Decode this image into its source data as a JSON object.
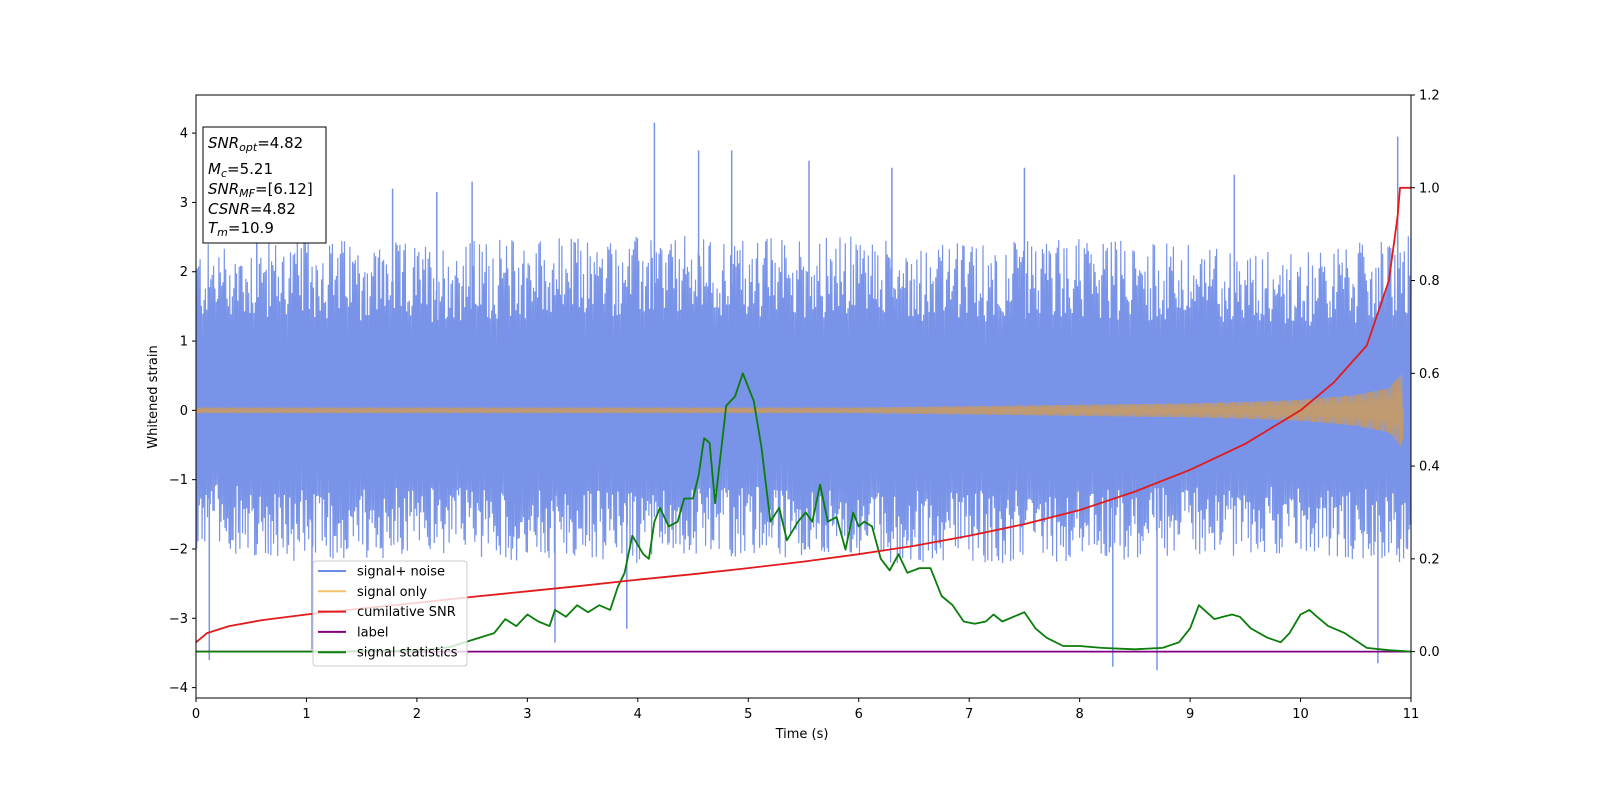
{
  "chart_data": {
    "type": "line",
    "xlabel": "Time (s)",
    "ylabel": "Whitened strain",
    "xlim": [
      0,
      11
    ],
    "ylim_left": [
      -4.15,
      4.55
    ],
    "ylim_right": [
      -0.1,
      1.2
    ],
    "x_ticks": [
      0,
      1,
      2,
      3,
      4,
      5,
      6,
      7,
      8,
      9,
      10,
      11
    ],
    "y_left_ticks": [
      -4,
      -3,
      -2,
      -1,
      0,
      1,
      2,
      3,
      4
    ],
    "y_right_ticks": [
      "0.0",
      "0.2",
      "0.4",
      "0.6",
      "0.8",
      "1.0",
      "1.2"
    ],
    "info_box": {
      "snr_opt": {
        "base": "SNR",
        "sub": "opt",
        "value": "=4.82"
      },
      "mc": {
        "base": "M",
        "sub": "c",
        "value": "=5.21"
      },
      "snr_mf": {
        "base": "SNR",
        "sub": "MF",
        "value": "=[6.12]"
      },
      "csnr": {
        "base": "CSNR",
        "sub": "",
        "value": "=4.82"
      },
      "tm": {
        "base": "T",
        "sub": "m",
        "value": "=10.9"
      }
    },
    "legend": {
      "position": "lower-left",
      "entries": [
        {
          "label": "signal+ noise",
          "color": "#6d8be6"
        },
        {
          "label": "signal only",
          "color": "#f5c16c"
        },
        {
          "label": "cumilative SNR",
          "color": "#e31a1c"
        },
        {
          "label": "label",
          "color": "#800080"
        },
        {
          "label": "signal statistics",
          "color": "#0a7d0a"
        }
      ]
    },
    "series": [
      {
        "name": "signal+ noise",
        "axis": "left",
        "style": "noise-band",
        "color": "#7893e8",
        "band_upper": [
          [
            0,
            2.3
          ],
          [
            1,
            2.4
          ],
          [
            2,
            2.3
          ],
          [
            3,
            2.4
          ],
          [
            4,
            2.4
          ],
          [
            5,
            2.4
          ],
          [
            6,
            2.4
          ],
          [
            7,
            2.3
          ],
          [
            8,
            2.4
          ],
          [
            9,
            2.3
          ],
          [
            10,
            2.2
          ],
          [
            11,
            2.4
          ]
        ],
        "band_lower": [
          [
            0,
            -1.9
          ],
          [
            1,
            -2.1
          ],
          [
            2,
            -2.0
          ],
          [
            3,
            -2.1
          ],
          [
            4,
            -2.1
          ],
          [
            5,
            -2.0
          ],
          [
            6,
            -2.1
          ],
          [
            7,
            -2.1
          ],
          [
            8,
            -2.1
          ],
          [
            9,
            -2.0
          ],
          [
            10,
            -2.0
          ],
          [
            11,
            -2.1
          ]
        ],
        "spikes": [
          [
            0.12,
            -3.6
          ],
          [
            0.55,
            3.2
          ],
          [
            1.05,
            -3.45
          ],
          [
            1.78,
            3.2
          ],
          [
            2.18,
            3.15
          ],
          [
            2.5,
            3.3
          ],
          [
            3.25,
            -3.35
          ],
          [
            3.9,
            -3.15
          ],
          [
            4.15,
            4.15
          ],
          [
            4.55,
            3.75
          ],
          [
            4.85,
            3.75
          ],
          [
            5.55,
            3.6
          ],
          [
            6.3,
            3.5
          ],
          [
            7.5,
            3.5
          ],
          [
            8.3,
            -3.7
          ],
          [
            8.7,
            -3.75
          ],
          [
            9.4,
            3.4
          ],
          [
            10.7,
            -3.65
          ],
          [
            10.88,
            3.95
          ]
        ]
      },
      {
        "name": "signal only",
        "axis": "left",
        "color": "#c09a70",
        "envelope": [
          [
            0,
            0.04
          ],
          [
            6,
            0.04
          ],
          [
            7,
            0.06
          ],
          [
            8,
            0.08
          ],
          [
            9,
            0.1
          ],
          [
            9.5,
            0.12
          ],
          [
            10,
            0.15
          ],
          [
            10.5,
            0.22
          ],
          [
            10.8,
            0.32
          ],
          [
            10.9,
            0.5
          ],
          [
            10.92,
            0.55
          ],
          [
            10.93,
            0.02
          ]
        ]
      },
      {
        "name": "cumilative SNR",
        "axis": "right",
        "color": "#e31a1c",
        "points": [
          [
            0,
            0.02
          ],
          [
            0.1,
            0.04
          ],
          [
            0.3,
            0.055
          ],
          [
            0.6,
            0.068
          ],
          [
            1,
            0.08
          ],
          [
            1.5,
            0.093
          ],
          [
            2,
            0.105
          ],
          [
            2.5,
            0.118
          ],
          [
            3,
            0.13
          ],
          [
            3.5,
            0.142
          ],
          [
            4,
            0.155
          ],
          [
            4.5,
            0.167
          ],
          [
            5,
            0.18
          ],
          [
            5.5,
            0.194
          ],
          [
            6,
            0.21
          ],
          [
            6.5,
            0.228
          ],
          [
            7,
            0.25
          ],
          [
            7.5,
            0.275
          ],
          [
            8,
            0.305
          ],
          [
            8.5,
            0.345
          ],
          [
            9,
            0.392
          ],
          [
            9.5,
            0.448
          ],
          [
            10,
            0.52
          ],
          [
            10.3,
            0.58
          ],
          [
            10.6,
            0.66
          ],
          [
            10.8,
            0.8
          ],
          [
            10.88,
            0.94
          ],
          [
            10.9,
            1.0
          ],
          [
            11,
            1.0
          ]
        ]
      },
      {
        "name": "label",
        "axis": "right",
        "color": "#800080",
        "points": [
          [
            0,
            0
          ],
          [
            11,
            0
          ]
        ]
      },
      {
        "name": "signal statistics",
        "axis": "right",
        "color": "#0a7d0a",
        "points": [
          [
            0,
            0
          ],
          [
            1,
            0
          ],
          [
            2,
            0.002
          ],
          [
            2.3,
            0.01
          ],
          [
            2.5,
            0.025
          ],
          [
            2.7,
            0.04
          ],
          [
            2.8,
            0.07
          ],
          [
            2.9,
            0.055
          ],
          [
            3.0,
            0.08
          ],
          [
            3.1,
            0.065
          ],
          [
            3.2,
            0.055
          ],
          [
            3.25,
            0.09
          ],
          [
            3.35,
            0.075
          ],
          [
            3.45,
            0.1
          ],
          [
            3.55,
            0.085
          ],
          [
            3.65,
            0.1
          ],
          [
            3.75,
            0.09
          ],
          [
            3.82,
            0.14
          ],
          [
            3.88,
            0.17
          ],
          [
            3.95,
            0.25
          ],
          [
            4.05,
            0.21
          ],
          [
            4.1,
            0.2
          ],
          [
            4.15,
            0.28
          ],
          [
            4.2,
            0.31
          ],
          [
            4.28,
            0.27
          ],
          [
            4.36,
            0.28
          ],
          [
            4.42,
            0.33
          ],
          [
            4.5,
            0.33
          ],
          [
            4.55,
            0.38
          ],
          [
            4.6,
            0.46
          ],
          [
            4.65,
            0.45
          ],
          [
            4.7,
            0.32
          ],
          [
            4.8,
            0.53
          ],
          [
            4.88,
            0.55
          ],
          [
            4.95,
            0.6
          ],
          [
            5.05,
            0.54
          ],
          [
            5.12,
            0.44
          ],
          [
            5.2,
            0.28
          ],
          [
            5.28,
            0.31
          ],
          [
            5.35,
            0.24
          ],
          [
            5.45,
            0.28
          ],
          [
            5.52,
            0.3
          ],
          [
            5.58,
            0.28
          ],
          [
            5.65,
            0.36
          ],
          [
            5.72,
            0.28
          ],
          [
            5.8,
            0.29
          ],
          [
            5.88,
            0.22
          ],
          [
            5.95,
            0.3
          ],
          [
            6.0,
            0.27
          ],
          [
            6.05,
            0.28
          ],
          [
            6.12,
            0.27
          ],
          [
            6.2,
            0.2
          ],
          [
            6.28,
            0.175
          ],
          [
            6.36,
            0.21
          ],
          [
            6.44,
            0.17
          ],
          [
            6.55,
            0.18
          ],
          [
            6.65,
            0.18
          ],
          [
            6.75,
            0.12
          ],
          [
            6.85,
            0.1
          ],
          [
            6.95,
            0.065
          ],
          [
            7.05,
            0.06
          ],
          [
            7.15,
            0.065
          ],
          [
            7.22,
            0.08
          ],
          [
            7.3,
            0.065
          ],
          [
            7.4,
            0.075
          ],
          [
            7.5,
            0.085
          ],
          [
            7.6,
            0.05
          ],
          [
            7.7,
            0.03
          ],
          [
            7.85,
            0.012
          ],
          [
            8.0,
            0.012
          ],
          [
            8.2,
            0.008
          ],
          [
            8.5,
            0.005
          ],
          [
            8.75,
            0.008
          ],
          [
            8.9,
            0.02
          ],
          [
            9.0,
            0.05
          ],
          [
            9.08,
            0.1
          ],
          [
            9.15,
            0.085
          ],
          [
            9.22,
            0.07
          ],
          [
            9.3,
            0.075
          ],
          [
            9.38,
            0.08
          ],
          [
            9.45,
            0.075
          ],
          [
            9.55,
            0.05
          ],
          [
            9.7,
            0.03
          ],
          [
            9.82,
            0.02
          ],
          [
            9.9,
            0.04
          ],
          [
            10.0,
            0.08
          ],
          [
            10.08,
            0.09
          ],
          [
            10.15,
            0.075
          ],
          [
            10.25,
            0.055
          ],
          [
            10.4,
            0.04
          ],
          [
            10.6,
            0.008
          ],
          [
            10.8,
            0.003
          ],
          [
            11,
            0
          ]
        ]
      }
    ]
  }
}
